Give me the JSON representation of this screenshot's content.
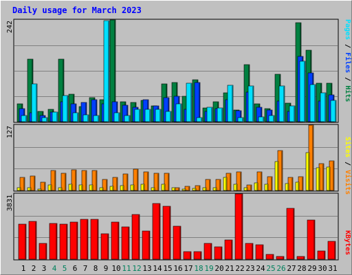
{
  "chart_data": {
    "type": "bar",
    "title": "Daily usage for March 2023",
    "categories": [
      "1",
      "2",
      "3",
      "4",
      "5",
      "6",
      "7",
      "8",
      "9",
      "10",
      "11",
      "12",
      "13",
      "14",
      "15",
      "16",
      "17",
      "18",
      "19",
      "20",
      "21",
      "22",
      "23",
      "24",
      "25",
      "26",
      "27",
      "28",
      "29",
      "30",
      "31"
    ],
    "weekend_days": [
      "4",
      "5",
      "11",
      "12",
      "18",
      "19",
      "25",
      "26"
    ],
    "panels": [
      {
        "id": "top",
        "max_label": "242",
        "ylim": [
          0,
          242
        ],
        "grid": true,
        "legend": [
          "Pages",
          "Files",
          "Hits"
        ],
        "series": [
          {
            "name": "Hits",
            "color": "#008040",
            "values": [
              42,
              148,
              24,
              30,
              149,
              65,
              36,
              57,
              53,
              242,
              48,
              45,
              51,
              38,
              90,
              93,
              60,
              99,
              32,
              47,
              69,
              27,
              136,
              42,
              31,
              113,
              44,
              235,
              170,
              92,
              91
            ]
          },
          {
            "name": "Files",
            "color": "#0040FF",
            "values": [
              31,
              21,
              15,
              23,
              48,
              42,
              46,
              52,
              42,
              47,
              39,
              34,
              52,
              38,
              58,
              61,
              29,
              93,
              25,
              31,
              53,
              26,
              70,
              34,
              28,
              49,
              24,
              155,
              116,
              49,
              64
            ]
          },
          {
            "name": "Pages",
            "color": "#00E0FF",
            "values": [
              14,
              90,
              9,
              23,
              62,
              22,
              17,
              14,
              240,
              22,
              14,
              30,
              29,
              29,
              24,
              43,
              92,
              10,
              34,
              32,
              86,
              9,
              85,
              12,
              15,
              85,
              37,
              144,
              89,
              68,
              51
            ]
          }
        ]
      },
      {
        "id": "mid",
        "max_label": "127",
        "ylim": [
          0,
          127
        ],
        "grid": true,
        "legend": [
          "Sites",
          "Visits"
        ],
        "series": [
          {
            "name": "Visits",
            "color": "#FF8000",
            "values": [
              26,
              28,
              16,
              39,
              34,
              40,
              39,
              39,
              22,
              26,
              32,
              42,
              36,
              34,
              34,
              6,
              8,
              9,
              21,
              21,
              34,
              36,
              11,
              36,
              27,
              77,
              25,
              27,
              127,
              52,
              57
            ]
          },
          {
            "name": "Sites",
            "color": "#FFFF00",
            "values": [
              6,
              5,
              3,
              11,
              6,
              12,
              11,
              11,
              6,
              8,
              10,
              11,
              12,
              6,
              12,
              5,
              3,
              4,
              6,
              6,
              26,
              12,
              5,
              15,
              12,
              56,
              13,
              16,
              73,
              44,
              46
            ]
          }
        ]
      },
      {
        "id": "bot",
        "max_label": "3831",
        "ylim": [
          0,
          3831
        ],
        "grid": true,
        "legend": [
          "KBytes"
        ],
        "series": [
          {
            "name": "KBytes",
            "color": "#FF0000",
            "values": [
              2070,
              2215,
              910,
              2080,
              2060,
              2160,
              2330,
              2330,
              1480,
              2185,
              1910,
              2620,
              1640,
              3270,
              3115,
              1950,
              460,
              460,
              930,
              730,
              1125,
              3831,
              920,
              840,
              300,
              180,
              3000,
              175,
              2300,
              480,
              1030
            ]
          }
        ]
      }
    ]
  }
}
